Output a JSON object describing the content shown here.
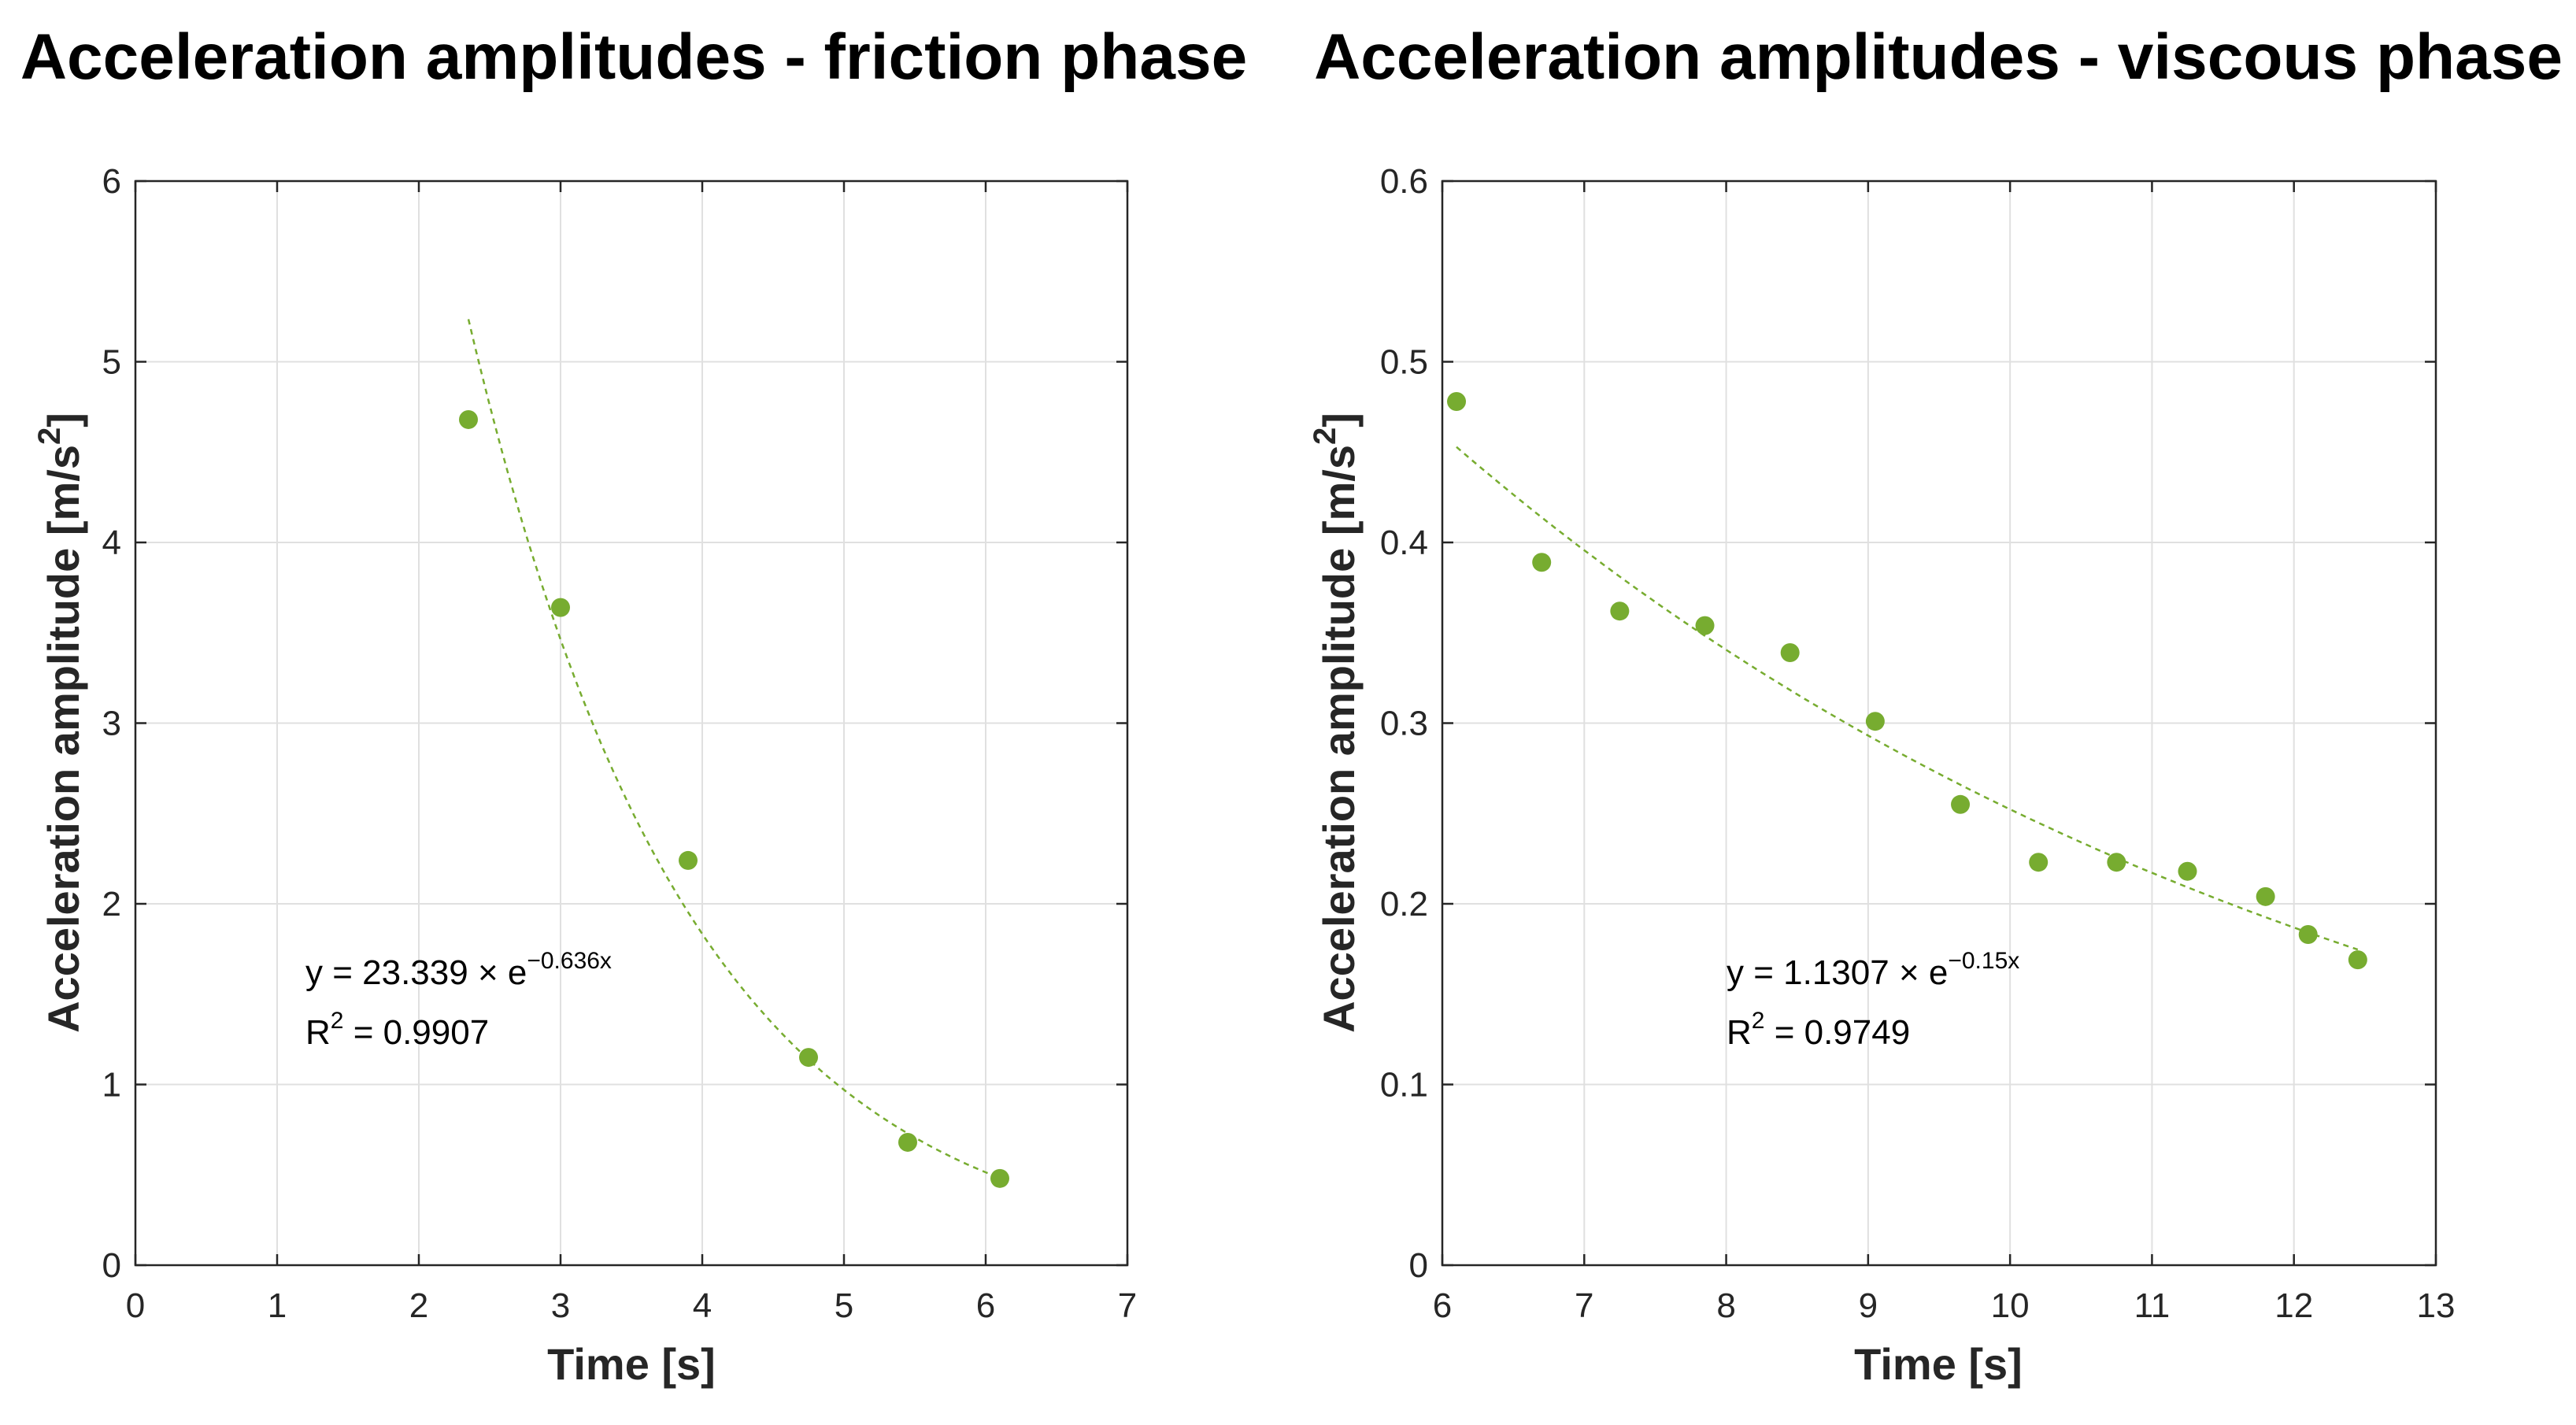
{
  "colors": {
    "marker": "#77ac30",
    "axis": "#262626",
    "grid": "#e0e0e0",
    "background": "#ffffff"
  },
  "chart_data": [
    {
      "type": "scatter",
      "title": "Acceleration amplitudes - friction phase",
      "xlabel": "Time [s]",
      "ylabel": "Acceleration amplitude [m/s",
      "ylabel_sup": "2",
      "ylabel_end": "]",
      "xlim": [
        0,
        7
      ],
      "ylim": [
        0,
        6
      ],
      "xticks": [
        0,
        1,
        2,
        3,
        4,
        5,
        6,
        7
      ],
      "yticks": [
        0,
        1,
        2,
        3,
        4,
        5,
        6
      ],
      "xtick_labels": [
        "0",
        "1",
        "2",
        "3",
        "4",
        "5",
        "6",
        "7"
      ],
      "ytick_labels": [
        "0",
        "1",
        "2",
        "3",
        "4",
        "5",
        "6"
      ],
      "grid": true,
      "series": [
        {
          "name": "Acceleration amplitude",
          "x": [
            2.35,
            3.0,
            3.9,
            4.75,
            5.45,
            6.1
          ],
          "y": [
            4.68,
            3.64,
            2.24,
            1.15,
            0.68,
            0.48
          ]
        }
      ],
      "fit": {
        "type": "exponential",
        "a": 23.339,
        "b": -0.636,
        "x_range": [
          2.35,
          6.1
        ],
        "style": "dashed"
      },
      "annotation": {
        "eq_prefix": "y = 23.339 × e",
        "eq_exponent": "−0.636x",
        "r2_prefix": "R",
        "r2_sup": "2",
        "r2_rest": " = 0.9907"
      }
    },
    {
      "type": "scatter",
      "title": "Acceleration amplitudes - viscous phase",
      "xlabel": "Time [s]",
      "ylabel": "Acceleration amplitude [m/s",
      "ylabel_sup": "2",
      "ylabel_end": "]",
      "xlim": [
        6,
        13
      ],
      "ylim": [
        0,
        0.6
      ],
      "xticks": [
        6,
        7,
        8,
        9,
        10,
        11,
        12,
        13
      ],
      "yticks": [
        0,
        0.1,
        0.2,
        0.3,
        0.4,
        0.5,
        0.6
      ],
      "xtick_labels": [
        "6",
        "7",
        "8",
        "9",
        "10",
        "11",
        "12",
        "13"
      ],
      "ytick_labels": [
        "0",
        "0.1",
        "0.2",
        "0.3",
        "0.4",
        "0.5",
        "0.6"
      ],
      "grid": true,
      "series": [
        {
          "name": "Acceleration amplitude",
          "x": [
            6.1,
            6.7,
            7.25,
            7.85,
            8.45,
            9.05,
            9.65,
            10.2,
            10.75,
            11.25,
            11.8,
            12.1,
            12.45
          ],
          "y": [
            0.478,
            0.389,
            0.362,
            0.354,
            0.339,
            0.301,
            0.255,
            0.223,
            0.223,
            0.218,
            0.204,
            0.183,
            0.169
          ]
        }
      ],
      "fit": {
        "type": "exponential",
        "a": 1.1307,
        "b": -0.15,
        "x_range": [
          6.1,
          12.45
        ],
        "style": "dashed"
      },
      "annotation": {
        "eq_prefix": "y = 1.1307 × e",
        "eq_exponent": "−0.15x",
        "r2_prefix": "R",
        "r2_sup": "2",
        "r2_rest": " = 0.9749"
      }
    }
  ]
}
